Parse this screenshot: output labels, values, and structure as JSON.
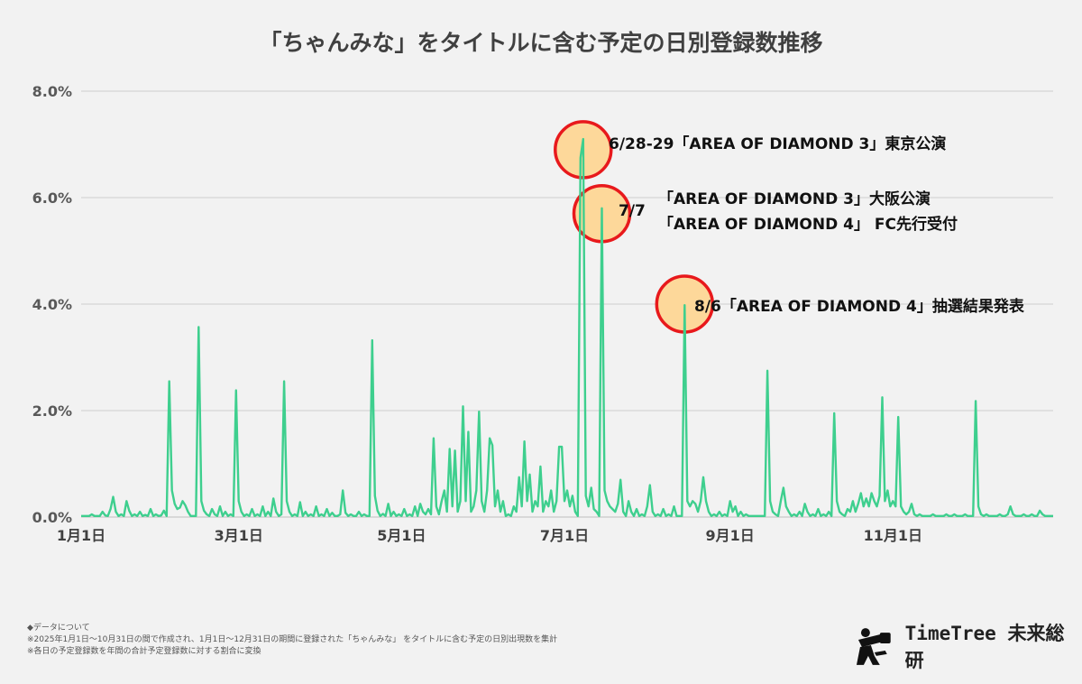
{
  "chart_data": {
    "type": "line",
    "title": "「ちゃんみな」をタイトルに含む予定の日別登録数推移",
    "ylim": [
      0,
      8
    ],
    "yticks": [
      {
        "value": 0,
        "label": "0.0%"
      },
      {
        "value": 2,
        "label": "2.0%"
      },
      {
        "value": 4,
        "label": "4.0%"
      },
      {
        "value": 6,
        "label": "6.0%"
      },
      {
        "value": 8,
        "label": "8.0%"
      }
    ],
    "xticks": [
      {
        "day": 1,
        "label": "1月1日"
      },
      {
        "day": 60,
        "label": "3月1日"
      },
      {
        "day": 121,
        "label": "5月1日"
      },
      {
        "day": 182,
        "label": "7月1日"
      },
      {
        "day": 244,
        "label": "9月1日"
      },
      {
        "day": 305,
        "label": "11月1日"
      }
    ],
    "grid": true,
    "line_color": "#3ecf8e",
    "series": [
      {
        "base_days": [
          1,
          365
        ],
        "base_value": 0.02,
        "points": [
          [
            5,
            0.05
          ],
          [
            9,
            0.1
          ],
          [
            10,
            0.03
          ],
          [
            12,
            0.15
          ],
          [
            13,
            0.38
          ],
          [
            14,
            0.1
          ],
          [
            16,
            0.05
          ],
          [
            18,
            0.3
          ],
          [
            19,
            0.12
          ],
          [
            21,
            0.05
          ],
          [
            23,
            0.1
          ],
          [
            25,
            0.04
          ],
          [
            27,
            0.15
          ],
          [
            29,
            0.05
          ],
          [
            31,
            0.03
          ],
          [
            32,
            0.12
          ],
          [
            34,
            2.55
          ],
          [
            35,
            0.5
          ],
          [
            36,
            0.25
          ],
          [
            37,
            0.15
          ],
          [
            38,
            0.18
          ],
          [
            39,
            0.3
          ],
          [
            40,
            0.22
          ],
          [
            41,
            0.1
          ],
          [
            45,
            3.57
          ],
          [
            46,
            0.3
          ],
          [
            47,
            0.12
          ],
          [
            48,
            0.05
          ],
          [
            50,
            0.15
          ],
          [
            51,
            0.05
          ],
          [
            53,
            0.2
          ],
          [
            55,
            0.1
          ],
          [
            57,
            0.05
          ],
          [
            59,
            2.38
          ],
          [
            60,
            0.3
          ],
          [
            61,
            0.1
          ],
          [
            63,
            0.05
          ],
          [
            65,
            0.15
          ],
          [
            67,
            0.05
          ],
          [
            69,
            0.2
          ],
          [
            71,
            0.1
          ],
          [
            73,
            0.35
          ],
          [
            74,
            0.1
          ],
          [
            76,
            0.05
          ],
          [
            77,
            2.55
          ],
          [
            78,
            0.3
          ],
          [
            79,
            0.1
          ],
          [
            81,
            0.05
          ],
          [
            83,
            0.28
          ],
          [
            85,
            0.1
          ],
          [
            87,
            0.05
          ],
          [
            89,
            0.2
          ],
          [
            91,
            0.05
          ],
          [
            93,
            0.15
          ],
          [
            95,
            0.08
          ],
          [
            98,
            0.05
          ],
          [
            99,
            0.5
          ],
          [
            100,
            0.08
          ],
          [
            102,
            0.05
          ],
          [
            105,
            0.1
          ],
          [
            107,
            0.05
          ],
          [
            110,
            3.32
          ],
          [
            111,
            0.4
          ],
          [
            112,
            0.12
          ],
          [
            114,
            0.06
          ],
          [
            116,
            0.25
          ],
          [
            118,
            0.1
          ],
          [
            120,
            0.05
          ],
          [
            122,
            0.15
          ],
          [
            124,
            0.05
          ],
          [
            126,
            0.2
          ],
          [
            128,
            0.25
          ],
          [
            129,
            0.1
          ],
          [
            130,
            0.05
          ],
          [
            131,
            0.15
          ],
          [
            132,
            0.05
          ],
          [
            133,
            1.48
          ],
          [
            134,
            0.2
          ],
          [
            135,
            0.05
          ],
          [
            136,
            0.3
          ],
          [
            137,
            0.5
          ],
          [
            138,
            0.1
          ],
          [
            139,
            1.28
          ],
          [
            140,
            0.2
          ],
          [
            141,
            1.25
          ],
          [
            142,
            0.1
          ],
          [
            143,
            0.3
          ],
          [
            144,
            2.08
          ],
          [
            145,
            0.3
          ],
          [
            146,
            1.6
          ],
          [
            147,
            0.1
          ],
          [
            148,
            0.2
          ],
          [
            149,
            0.5
          ],
          [
            150,
            1.98
          ],
          [
            151,
            0.3
          ],
          [
            152,
            0.1
          ],
          [
            153,
            0.5
          ],
          [
            154,
            1.48
          ],
          [
            155,
            1.35
          ],
          [
            156,
            0.2
          ],
          [
            157,
            0.5
          ],
          [
            158,
            0.1
          ],
          [
            159,
            0.3
          ],
          [
            161,
            0.05
          ],
          [
            163,
            0.2
          ],
          [
            164,
            0.1
          ],
          [
            165,
            0.75
          ],
          [
            166,
            0.2
          ],
          [
            167,
            1.42
          ],
          [
            168,
            0.3
          ],
          [
            169,
            0.8
          ],
          [
            170,
            0.1
          ],
          [
            171,
            0.3
          ],
          [
            172,
            0.2
          ],
          [
            173,
            0.95
          ],
          [
            174,
            0.1
          ],
          [
            175,
            0.3
          ],
          [
            176,
            0.2
          ],
          [
            177,
            0.5
          ],
          [
            178,
            0.1
          ],
          [
            179,
            0.3
          ],
          [
            180,
            1.32
          ],
          [
            181,
            1.32
          ],
          [
            182,
            0.3
          ],
          [
            183,
            0.5
          ],
          [
            184,
            0.2
          ],
          [
            185,
            0.4
          ],
          [
            186,
            0.1
          ],
          [
            188,
            6.75
          ],
          [
            189,
            7.1
          ],
          [
            190,
            0.4
          ],
          [
            191,
            0.2
          ],
          [
            192,
            0.55
          ],
          [
            193,
            0.15
          ],
          [
            194,
            0.1
          ],
          [
            196,
            5.8
          ],
          [
            197,
            0.5
          ],
          [
            198,
            0.3
          ],
          [
            199,
            0.2
          ],
          [
            200,
            0.15
          ],
          [
            201,
            0.1
          ],
          [
            202,
            0.25
          ],
          [
            203,
            0.7
          ],
          [
            204,
            0.1
          ],
          [
            206,
            0.3
          ],
          [
            207,
            0.1
          ],
          [
            209,
            0.15
          ],
          [
            211,
            0.05
          ],
          [
            213,
            0.2
          ],
          [
            214,
            0.6
          ],
          [
            215,
            0.1
          ],
          [
            217,
            0.05
          ],
          [
            219,
            0.15
          ],
          [
            221,
            0.05
          ],
          [
            223,
            0.2
          ],
          [
            227,
            3.98
          ],
          [
            228,
            0.3
          ],
          [
            229,
            0.2
          ],
          [
            230,
            0.3
          ],
          [
            231,
            0.25
          ],
          [
            232,
            0.1
          ],
          [
            233,
            0.3
          ],
          [
            234,
            0.75
          ],
          [
            235,
            0.3
          ],
          [
            236,
            0.1
          ],
          [
            238,
            0.05
          ],
          [
            240,
            0.1
          ],
          [
            242,
            0.05
          ],
          [
            244,
            0.3
          ],
          [
            245,
            0.1
          ],
          [
            246,
            0.2
          ],
          [
            248,
            0.1
          ],
          [
            250,
            0.05
          ],
          [
            258,
            2.75
          ],
          [
            259,
            0.3
          ],
          [
            260,
            0.1
          ],
          [
            261,
            0.05
          ],
          [
            263,
            0.3
          ],
          [
            264,
            0.55
          ],
          [
            265,
            0.2
          ],
          [
            266,
            0.1
          ],
          [
            268,
            0.05
          ],
          [
            270,
            0.1
          ],
          [
            272,
            0.25
          ],
          [
            273,
            0.1
          ],
          [
            275,
            0.05
          ],
          [
            277,
            0.15
          ],
          [
            279,
            0.05
          ],
          [
            281,
            0.1
          ],
          [
            283,
            1.95
          ],
          [
            284,
            0.3
          ],
          [
            285,
            0.1
          ],
          [
            286,
            0.05
          ],
          [
            288,
            0.15
          ],
          [
            289,
            0.1
          ],
          [
            290,
            0.3
          ],
          [
            291,
            0.1
          ],
          [
            292,
            0.25
          ],
          [
            293,
            0.45
          ],
          [
            294,
            0.2
          ],
          [
            295,
            0.35
          ],
          [
            296,
            0.2
          ],
          [
            297,
            0.45
          ],
          [
            298,
            0.3
          ],
          [
            299,
            0.2
          ],
          [
            300,
            0.4
          ],
          [
            301,
            2.25
          ],
          [
            302,
            0.3
          ],
          [
            303,
            0.5
          ],
          [
            304,
            0.2
          ],
          [
            305,
            0.3
          ],
          [
            306,
            0.2
          ],
          [
            307,
            1.88
          ],
          [
            308,
            0.2
          ],
          [
            309,
            0.1
          ],
          [
            310,
            0.05
          ],
          [
            311,
            0.1
          ],
          [
            312,
            0.25
          ],
          [
            313,
            0.05
          ],
          [
            315,
            0.05
          ],
          [
            320,
            0.05
          ],
          [
            325,
            0.05
          ],
          [
            328,
            0.05
          ],
          [
            332,
            0.05
          ],
          [
            336,
            2.18
          ],
          [
            337,
            0.2
          ],
          [
            338,
            0.05
          ],
          [
            340,
            0.05
          ],
          [
            345,
            0.05
          ],
          [
            348,
            0.05
          ],
          [
            349,
            0.2
          ],
          [
            350,
            0.05
          ],
          [
            354,
            0.05
          ],
          [
            357,
            0.05
          ],
          [
            360,
            0.12
          ],
          [
            361,
            0.05
          ]
        ]
      }
    ],
    "annotations": [
      {
        "day": 189,
        "value": 6.9,
        "label": "6/28-29「AREA OF DIAMOND 3」東京公演"
      },
      {
        "day": 196,
        "value": 5.7,
        "label": "7/7",
        "lines": [
          "「AREA OF DIAMOND 3」大阪公演",
          "「AREA OF DIAMOND 4」 FC先行受付"
        ]
      },
      {
        "day": 227,
        "value": 4.0,
        "label": "8/6「AREA OF DIAMOND 4」抽選結果発表"
      }
    ]
  },
  "footer": {
    "heading": "◆データについて",
    "note1": "※2025年1月1日～10月31日の間で作成され、1月1日～12月31日の期間に登録された「ちゃんみな」 をタイトルに含む予定の日別出現数を集計",
    "note2": "※各日の予定登録数を年間の合計予定登録数に対する割合に変換"
  },
  "logo": {
    "text": "TimeTree 未来総研",
    "icon": "telescope-person-icon"
  }
}
